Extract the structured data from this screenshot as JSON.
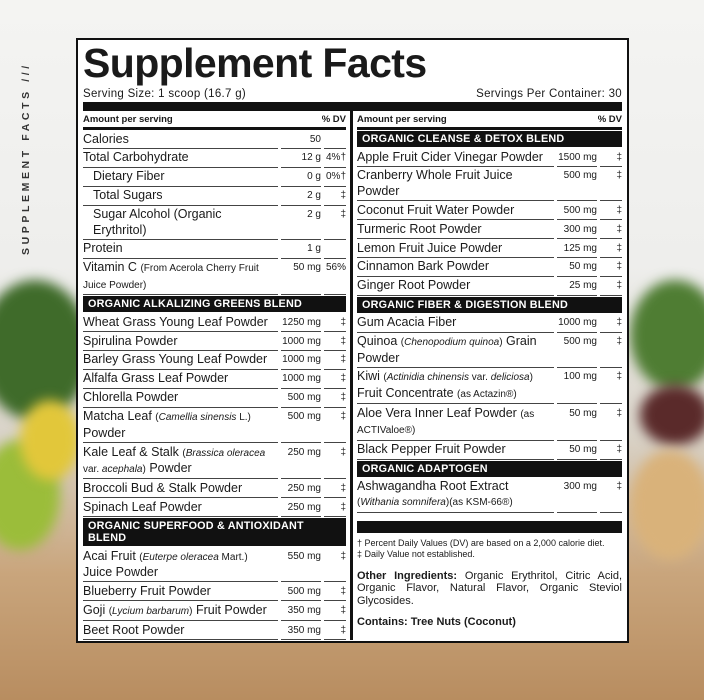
{
  "side_label": "SUPPLEMENT FACTS ///",
  "title": "Supplement Facts",
  "serving_size": "Serving Size: 1 scoop (16.7 g)",
  "servings_per_container": "Servings Per Container: 30",
  "columns": [
    {
      "header_amount": "Amount per serving",
      "header_dv": "% DV",
      "rows": [
        {
          "parts": [
            {
              "text": "Calories",
              "style": "normal"
            }
          ],
          "amount": "50"
        },
        {
          "parts": [
            {
              "text": "Total Carbohydrate",
              "style": "normal"
            }
          ],
          "amount": "12 g",
          "dv": "4%†"
        },
        {
          "parts": [
            {
              "text": "Dietary Fiber",
              "style": "normal"
            }
          ],
          "amount": "0 g",
          "dv": "0%†",
          "indent": true
        },
        {
          "parts": [
            {
              "text": "Total Sugars",
              "style": "normal"
            }
          ],
          "amount": "2 g",
          "dv": "‡",
          "indent": true
        },
        {
          "parts": [
            {
              "text": "Sugar Alcohol (Organic Erythritol)",
              "style": "normal"
            }
          ],
          "amount": "2 g",
          "dv": "‡",
          "indent": true
        },
        {
          "parts": [
            {
              "text": "Protein",
              "style": "normal"
            }
          ],
          "amount": "1 g"
        },
        {
          "parts": [
            {
              "text": "Vitamin C ",
              "style": "normal"
            },
            {
              "text": "(From Acerola Cherry Fruit Juice Powder)",
              "style": "small"
            }
          ],
          "amount": "50 mg",
          "dv": "56%"
        },
        {
          "section": "ORGANIC ALKALIZING GREENS BLEND"
        },
        {
          "parts": [
            {
              "text": "Wheat Grass Young Leaf Powder",
              "style": "normal"
            }
          ],
          "amount": "1250 mg",
          "dv": "‡"
        },
        {
          "parts": [
            {
              "text": "Spirulina Powder",
              "style": "normal"
            }
          ],
          "amount": "1000 mg",
          "dv": "‡"
        },
        {
          "parts": [
            {
              "text": "Barley Grass Young Leaf Powder",
              "style": "normal"
            }
          ],
          "amount": "1000 mg",
          "dv": "‡"
        },
        {
          "parts": [
            {
              "text": "Alfalfa Grass Leaf Powder",
              "style": "normal"
            }
          ],
          "amount": "1000 mg",
          "dv": "‡"
        },
        {
          "parts": [
            {
              "text": "Chlorella Powder",
              "style": "normal"
            }
          ],
          "amount": "500 mg",
          "dv": "‡"
        },
        {
          "parts": [
            {
              "text": "Matcha Leaf ",
              "style": "normal"
            },
            {
              "text": "(",
              "style": "small"
            },
            {
              "text": "Camellia sinensis",
              "style": "italic"
            },
            {
              "text": " L.)",
              "style": "small"
            },
            {
              "text": " Powder",
              "style": "normal"
            }
          ],
          "amount": "500 mg",
          "dv": "‡"
        },
        {
          "parts": [
            {
              "text": "Kale Leaf & Stalk ",
              "style": "normal"
            },
            {
              "text": "(",
              "style": "small"
            },
            {
              "text": "Brassica oleracea",
              "style": "italic"
            },
            {
              "text": " var. ",
              "style": "small"
            },
            {
              "text": "acephala",
              "style": "italic"
            },
            {
              "text": ")",
              "style": "small"
            },
            {
              "text": " Powder",
              "style": "normal"
            }
          ],
          "amount": "250 mg",
          "dv": "‡"
        },
        {
          "parts": [
            {
              "text": "Broccoli Bud & Stalk Powder",
              "style": "normal"
            }
          ],
          "amount": "250 mg",
          "dv": "‡"
        },
        {
          "parts": [
            {
              "text": "Spinach Leaf Powder",
              "style": "normal"
            }
          ],
          "amount": "250 mg",
          "dv": "‡"
        },
        {
          "section": "ORGANIC SUPERFOOD & ANTIOXIDANT BLEND"
        },
        {
          "parts": [
            {
              "text": "Acai Fruit ",
              "style": "normal"
            },
            {
              "text": "(",
              "style": "small"
            },
            {
              "text": "Euterpe oleracea",
              "style": "italic"
            },
            {
              "text": " Mart.)",
              "style": "small"
            },
            {
              "text": " Juice Powder",
              "style": "normal"
            }
          ],
          "amount": "550 mg",
          "dv": "‡"
        },
        {
          "parts": [
            {
              "text": "Blueberry Fruit Powder",
              "style": "normal"
            }
          ],
          "amount": "500 mg",
          "dv": "‡"
        },
        {
          "parts": [
            {
              "text": "Goji ",
              "style": "normal"
            },
            {
              "text": "(",
              "style": "small"
            },
            {
              "text": "Lycium barbarum",
              "style": "italic"
            },
            {
              "text": ")",
              "style": "small"
            },
            {
              "text": " Fruit Powder",
              "style": "normal"
            }
          ],
          "amount": "350 mg",
          "dv": "‡"
        },
        {
          "parts": [
            {
              "text": "Beet Root Powder",
              "style": "normal"
            }
          ],
          "amount": "350 mg",
          "dv": "‡"
        }
      ]
    },
    {
      "header_amount": "Amount per serving",
      "header_dv": "% DV",
      "rows": [
        {
          "section": "ORGANIC CLEANSE & DETOX BLEND"
        },
        {
          "parts": [
            {
              "text": "Apple Fruit Cider Vinegar Powder",
              "style": "normal"
            }
          ],
          "amount": "1500 mg",
          "dv": "‡"
        },
        {
          "parts": [
            {
              "text": "Cranberry Whole Fruit Juice Powder",
              "style": "normal"
            }
          ],
          "amount": "500 mg",
          "dv": "‡"
        },
        {
          "parts": [
            {
              "text": "Coconut Fruit Water Powder",
              "style": "normal"
            }
          ],
          "amount": "500 mg",
          "dv": "‡"
        },
        {
          "parts": [
            {
              "text": "Turmeric Root Powder",
              "style": "normal"
            }
          ],
          "amount": "300 mg",
          "dv": "‡"
        },
        {
          "parts": [
            {
              "text": "Lemon Fruit Juice Powder",
              "style": "normal"
            }
          ],
          "amount": "125 mg",
          "dv": "‡"
        },
        {
          "parts": [
            {
              "text": "Cinnamon Bark Powder",
              "style": "normal"
            }
          ],
          "amount": "50 mg",
          "dv": "‡"
        },
        {
          "parts": [
            {
              "text": "Ginger Root Powder",
              "style": "normal"
            }
          ],
          "amount": "25 mg",
          "dv": "‡"
        },
        {
          "section": "ORGANIC FIBER & DIGESTION BLEND"
        },
        {
          "parts": [
            {
              "text": "Gum Acacia Fiber",
              "style": "normal"
            }
          ],
          "amount": "1000 mg",
          "dv": "‡"
        },
        {
          "parts": [
            {
              "text": "Quinoa ",
              "style": "normal"
            },
            {
              "text": "(",
              "style": "small"
            },
            {
              "text": "Chenopodium quinoa",
              "style": "italic"
            },
            {
              "text": ")",
              "style": "small"
            },
            {
              "text": " Grain Powder",
              "style": "normal"
            }
          ],
          "amount": "500 mg",
          "dv": "‡"
        },
        {
          "parts": [
            {
              "text": "Kiwi ",
              "style": "normal"
            },
            {
              "text": "(",
              "style": "small"
            },
            {
              "text": "Actinidia chinensis",
              "style": "italic"
            },
            {
              "text": " var. ",
              "style": "small"
            },
            {
              "text": "deliciosa",
              "style": "italic"
            },
            {
              "text": ")",
              "style": "small"
            },
            {
              "text": " Fruit Concentrate ",
              "style": "normal"
            },
            {
              "text": "(as Actazin®)",
              "style": "small"
            }
          ],
          "amount": "100 mg",
          "dv": "‡"
        },
        {
          "parts": [
            {
              "text": "Aloe Vera Inner Leaf Powder ",
              "style": "normal"
            },
            {
              "text": "(as ACTIValoe®)",
              "style": "small"
            }
          ],
          "amount": "50 mg",
          "dv": "‡"
        },
        {
          "parts": [
            {
              "text": "Black Pepper Fruit Powder",
              "style": "normal"
            }
          ],
          "amount": "50 mg",
          "dv": "‡"
        },
        {
          "section": "ORGANIC ADAPTOGEN"
        },
        {
          "parts": [
            {
              "text": "Ashwagandha Root Extract ",
              "style": "normal"
            },
            {
              "text": "(",
              "style": "small"
            },
            {
              "text": "Withania somnifera",
              "style": "italic"
            },
            {
              "text": ")(as KSM-66®)",
              "style": "small"
            }
          ],
          "amount": "300 mg",
          "dv": "‡"
        }
      ],
      "footnotes": [
        "† Percent Daily Values (DV) are based on a 2,000 calorie diet.",
        "‡ Daily Value not established."
      ],
      "other_ingredients_label": "Other Ingredients:",
      "other_ingredients": "Organic Erythritol, Citric Acid, Organic Flavor, Natural Flavor, Organic Steviol Glycosides.",
      "contains": "Contains: Tree Nuts (Coconut)"
    }
  ]
}
